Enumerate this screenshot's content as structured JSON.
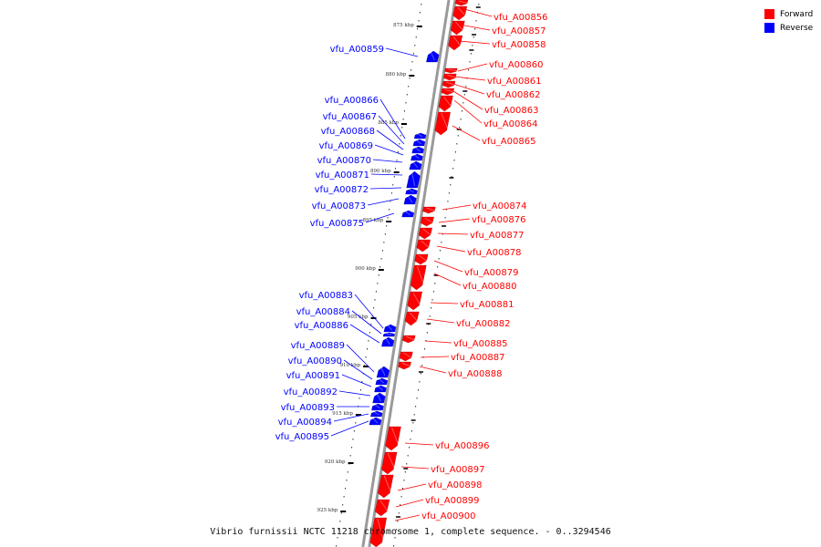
{
  "legend": {
    "forward_label": "Forward",
    "reverse_label": "Reverse",
    "forward_color": "#ff0000",
    "reverse_color": "#0000ff"
  },
  "caption": "Vibrio furnissii NCTC 11218 chromosome 1, complete sequence. - 0..3294546",
  "kbp_marks": [
    "875 kbp",
    "880 kbp",
    "885 kbp",
    "890 kbp",
    "895 kbp",
    "900 kbp",
    "905 kbp",
    "910 kbp",
    "915 kbp",
    "920 kbp",
    "925 kbp"
  ],
  "forward_genes": [
    "vfu_A00856",
    "vfu_A00857",
    "vfu_A00858",
    "vfu_A00860",
    "vfu_A00861",
    "vfu_A00862",
    "vfu_A00863",
    "vfu_A00864",
    "vfu_A00865",
    "vfu_A00874",
    "vfu_A00876",
    "vfu_A00877",
    "vfu_A00878",
    "vfu_A00879",
    "vfu_A00880",
    "vfu_A00881",
    "vfu_A00882",
    "vfu_A00885",
    "vfu_A00887",
    "vfu_A00888",
    "vfu_A00896",
    "vfu_A00897",
    "vfu_A00898",
    "vfu_A00899",
    "vfu_A00900"
  ],
  "reverse_genes": [
    "vfu_A00859",
    "vfu_A00866",
    "vfu_A00867",
    "vfu_A00868",
    "vfu_A00869",
    "vfu_A00870",
    "vfu_A00871",
    "vfu_A00872",
    "vfu_A00873",
    "vfu_A00875",
    "vfu_A00883",
    "vfu_A00884",
    "vfu_A00886",
    "vfu_A00889",
    "vfu_A00890",
    "vfu_A00891",
    "vfu_A00892",
    "vfu_A00893",
    "vfu_A00894",
    "vfu_A00895"
  ]
}
